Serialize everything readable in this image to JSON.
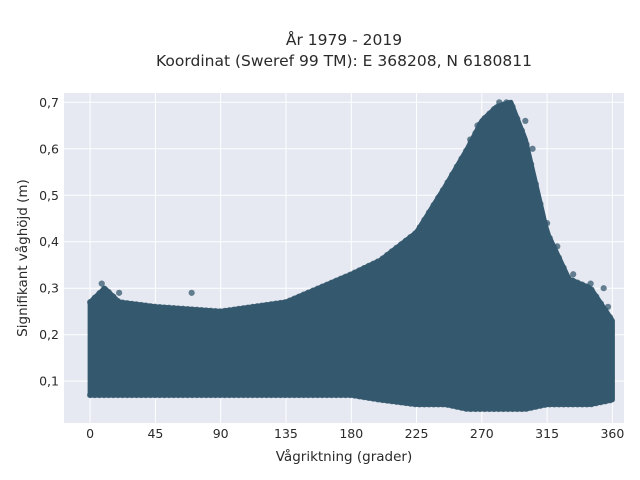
{
  "chart_data": {
    "type": "scatter",
    "title": "År 1979 - 2019",
    "subtitle": "Koordinat (Sweref 99 TM): E 368208, N 6180811",
    "xlabel": "Vågriktning (grader)",
    "ylabel": "Signifikant våghöjd (m)",
    "xlim": [
      -18,
      368
    ],
    "ylim": [
      0.01,
      0.72
    ],
    "x_ticks": [
      0,
      45,
      90,
      135,
      180,
      225,
      270,
      315,
      360
    ],
    "x_tick_labels": [
      "0",
      "45",
      "90",
      "135",
      "180",
      "225",
      "270",
      "315",
      "360"
    ],
    "y_ticks": [
      0.1,
      0.2,
      0.3,
      0.4,
      0.5,
      0.6,
      0.7
    ],
    "y_tick_labels": [
      "0,1",
      "0,2",
      "0,3",
      "0,4",
      "0,5",
      "0,6",
      "0,7"
    ],
    "grid": true,
    "legend": "none",
    "marker_color": "#34586e",
    "background_color": "#e6e9f2",
    "envelope": {
      "x": [
        0,
        10,
        20,
        45,
        90,
        135,
        180,
        200,
        225,
        245,
        260,
        270,
        280,
        290,
        300,
        315,
        330,
        345,
        360
      ],
      "y_min": [
        0.07,
        0.07,
        0.07,
        0.07,
        0.07,
        0.07,
        0.07,
        0.06,
        0.05,
        0.05,
        0.04,
        0.04,
        0.04,
        0.04,
        0.04,
        0.05,
        0.05,
        0.05,
        0.06
      ],
      "y_max": [
        0.27,
        0.3,
        0.27,
        0.26,
        0.25,
        0.27,
        0.33,
        0.36,
        0.42,
        0.52,
        0.6,
        0.66,
        0.69,
        0.7,
        0.62,
        0.42,
        0.32,
        0.3,
        0.23
      ]
    },
    "points": [
      {
        "x": 8,
        "y": 0.31
      },
      {
        "x": 20,
        "y": 0.29
      },
      {
        "x": 40,
        "y": 0.26
      },
      {
        "x": 70,
        "y": 0.29
      },
      {
        "x": 155,
        "y": 0.29
      },
      {
        "x": 185,
        "y": 0.33
      },
      {
        "x": 195,
        "y": 0.35
      },
      {
        "x": 210,
        "y": 0.38
      },
      {
        "x": 262,
        "y": 0.62
      },
      {
        "x": 267,
        "y": 0.65
      },
      {
        "x": 274,
        "y": 0.67
      },
      {
        "x": 282,
        "y": 0.7
      },
      {
        "x": 287,
        "y": 0.7
      },
      {
        "x": 292,
        "y": 0.68
      },
      {
        "x": 300,
        "y": 0.66
      },
      {
        "x": 305,
        "y": 0.6
      },
      {
        "x": 315,
        "y": 0.44
      },
      {
        "x": 322,
        "y": 0.39
      },
      {
        "x": 333,
        "y": 0.33
      },
      {
        "x": 345,
        "y": 0.31
      },
      {
        "x": 354,
        "y": 0.3
      },
      {
        "x": 357,
        "y": 0.26
      }
    ]
  }
}
